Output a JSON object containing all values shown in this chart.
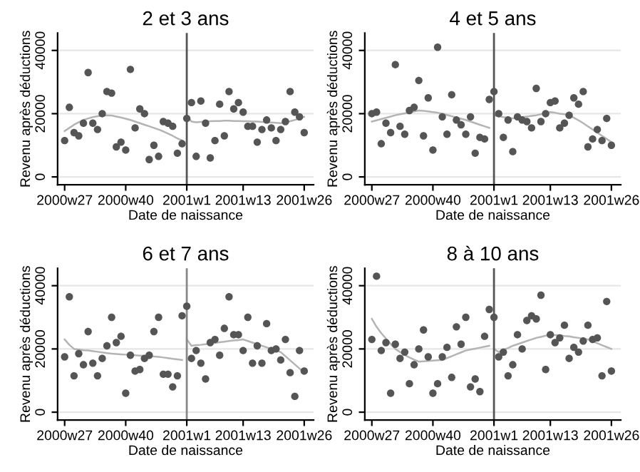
{
  "chart_data": [
    {
      "type": "scatter",
      "title": "2 et 3 ans",
      "xlabel": "Date de naissance",
      "ylabel": "Revenu après déductions",
      "ylim": [
        -2500,
        45500
      ],
      "yticks": [
        0,
        20000,
        40000
      ],
      "grid": "y",
      "marker": "circle",
      "categories": [
        "2000w27",
        null,
        null,
        null,
        null,
        null,
        null,
        null,
        null,
        null,
        null,
        null,
        null,
        "2000w40",
        null,
        null,
        null,
        null,
        null,
        null,
        null,
        null,
        null,
        null,
        null,
        null,
        "2001w1",
        null,
        null,
        null,
        null,
        null,
        null,
        null,
        null,
        null,
        null,
        null,
        "2001w13",
        null,
        null,
        null,
        null,
        null,
        null,
        null,
        null,
        null,
        null,
        null,
        null,
        "2001w26"
      ],
      "ref_lines": [
        {
          "axis": "x",
          "value": "2001w1",
          "color": "#555555"
        }
      ],
      "series": [
        {
          "color": "#555555",
          "values": [
            11500,
            22000,
            14000,
            13000,
            17000,
            33000,
            17000,
            15000,
            20000,
            27000,
            26500,
            9500,
            11000,
            8500,
            34000,
            15500,
            21500,
            20000,
            5500,
            10000,
            6500,
            17500,
            17000,
            16000,
            7500,
            10500,
            18500,
            23500,
            6500,
            24000,
            17000,
            6000,
            11500,
            23000,
            13000,
            27000,
            21500,
            23500,
            20500,
            16000,
            16000,
            11000,
            15000,
            18000,
            15500,
            11500,
            15000,
            17500,
            27000,
            20500,
            19000,
            14000
          ]
        },
        {
          "type": "line",
          "color": "#b4b4b4",
          "marker": "none",
          "values": [
            14500,
            15500,
            16500,
            17300,
            18000,
            18500,
            18900,
            19200,
            19400,
            19500,
            19400,
            19100,
            18800,
            18400,
            18000,
            17500,
            17000,
            16500,
            16000,
            15500,
            15000,
            14400,
            13700,
            13000,
            12200,
            11500,
            null,
            null,
            null,
            null,
            null,
            null,
            null,
            null,
            null,
            null,
            null,
            null,
            null,
            null,
            null,
            null,
            null,
            null,
            null,
            null,
            null,
            null,
            null,
            null,
            null,
            null
          ]
        },
        {
          "type": "line",
          "color": "#b4b4b4",
          "marker": "none",
          "values": [
            null,
            null,
            null,
            null,
            null,
            null,
            null,
            null,
            null,
            null,
            null,
            null,
            null,
            null,
            null,
            null,
            null,
            null,
            null,
            null,
            null,
            null,
            null,
            null,
            null,
            null,
            19500,
            17500,
            17300,
            17400,
            17500,
            17600,
            17700,
            17700,
            17800,
            17800,
            17700,
            17700,
            17600,
            17600,
            17500,
            17500,
            17400,
            17300,
            17200,
            17100,
            17000,
            17200,
            17600,
            18000,
            18500,
            19000
          ]
        }
      ]
    },
    {
      "type": "scatter",
      "title": "4 et 5 ans",
      "xlabel": "Date de naissance",
      "ylabel": "Revenu après déductions",
      "ylim": [
        -2500,
        45500
      ],
      "yticks": [
        0,
        20000,
        40000
      ],
      "grid": "y",
      "marker": "circle",
      "categories": [
        "2000w27",
        null,
        null,
        null,
        null,
        null,
        null,
        null,
        null,
        null,
        null,
        null,
        null,
        "2000w40",
        null,
        null,
        null,
        null,
        null,
        null,
        null,
        null,
        null,
        null,
        null,
        null,
        "2001w1",
        null,
        null,
        null,
        null,
        null,
        null,
        null,
        null,
        null,
        null,
        null,
        "2001w13",
        null,
        null,
        null,
        null,
        null,
        null,
        null,
        null,
        null,
        null,
        null,
        null,
        "2001w26"
      ],
      "ref_lines": [
        {
          "axis": "x",
          "value": "2001w1",
          "color": "#555555"
        }
      ],
      "series": [
        {
          "color": "#555555",
          "values": [
            20000,
            20500,
            10500,
            17000,
            14000,
            35500,
            16000,
            13500,
            21000,
            22000,
            30500,
            13000,
            25000,
            8500,
            41000,
            19000,
            13500,
            26000,
            18000,
            16500,
            13500,
            19000,
            7500,
            12500,
            12000,
            24500,
            27000,
            20000,
            12500,
            18000,
            8000,
            19000,
            18000,
            17500,
            15500,
            28000,
            17500,
            20000,
            23500,
            24000,
            15500,
            17000,
            19500,
            25000,
            23000,
            27000,
            9500,
            12000,
            15000,
            11500,
            18500,
            10000
          ]
        },
        {
          "type": "line",
          "color": "#b4b4b4",
          "marker": "none",
          "values": [
            17500,
            17900,
            18300,
            18700,
            19100,
            19500,
            19800,
            20100,
            20400,
            20700,
            21000,
            20900,
            20700,
            20500,
            20300,
            20000,
            19600,
            19200,
            18800,
            18400,
            18000,
            17500,
            17000,
            16500,
            16000,
            15500,
            null,
            null,
            null,
            null,
            null,
            null,
            null,
            null,
            null,
            null,
            null,
            null,
            null,
            null,
            null,
            null,
            null,
            null,
            null,
            null,
            null,
            null,
            null,
            null,
            null,
            null
          ]
        },
        {
          "type": "line",
          "color": "#b4b4b4",
          "marker": "none",
          "values": [
            null,
            null,
            null,
            null,
            null,
            null,
            null,
            null,
            null,
            null,
            null,
            null,
            null,
            null,
            null,
            null,
            null,
            null,
            null,
            null,
            null,
            null,
            null,
            null,
            null,
            null,
            19500,
            19200,
            18900,
            18700,
            18500,
            18700,
            18900,
            19100,
            19300,
            19500,
            19800,
            20200,
            20500,
            20300,
            20000,
            19800,
            19500,
            18700,
            17900,
            17000,
            16000,
            15000,
            14000,
            13000,
            12000,
            11000
          ]
        }
      ]
    },
    {
      "type": "scatter",
      "title": "6 et 7 ans",
      "xlabel": "Date de naissance",
      "ylabel": "Revenu après déductions",
      "ylim": [
        -2500,
        45500
      ],
      "yticks": [
        0,
        20000,
        40000
      ],
      "grid": "y",
      "marker": "circle",
      "categories": [
        "2000w27",
        null,
        null,
        null,
        null,
        null,
        null,
        null,
        null,
        null,
        null,
        null,
        null,
        "2000w40",
        null,
        null,
        null,
        null,
        null,
        null,
        null,
        null,
        null,
        null,
        null,
        null,
        "2001w1",
        null,
        null,
        null,
        null,
        null,
        null,
        null,
        null,
        null,
        null,
        null,
        "2001w13",
        null,
        null,
        null,
        null,
        null,
        null,
        null,
        null,
        null,
        null,
        null,
        null,
        "2001w26"
      ],
      "ref_lines": [
        {
          "axis": "x",
          "value": "2001w1",
          "color": "#888888"
        }
      ],
      "series": [
        {
          "color": "#555555",
          "values": [
            17500,
            36500,
            11500,
            18500,
            15000,
            25500,
            15500,
            11500,
            17000,
            21000,
            30000,
            22000,
            24000,
            6000,
            18000,
            13000,
            13500,
            17000,
            18000,
            25500,
            30000,
            12000,
            12000,
            8000,
            11500,
            30500,
            33500,
            17000,
            19500,
            15500,
            10500,
            22000,
            23000,
            18000,
            26500,
            36500,
            24500,
            24500,
            19500,
            30000,
            15500,
            21000,
            15500,
            28000,
            19500,
            20000,
            16500,
            23000,
            12500,
            5000,
            19500,
            13000
          ]
        },
        {
          "type": "line",
          "color": "#b4b4b4",
          "marker": "none",
          "values": [
            23000,
            21300,
            20000,
            19800,
            19600,
            19500,
            19300,
            19100,
            18900,
            18700,
            18500,
            18400,
            18300,
            18200,
            18100,
            18000,
            17900,
            17800,
            17700,
            17600,
            17500,
            17300,
            17100,
            16900,
            16700,
            16500,
            null,
            null,
            null,
            null,
            null,
            null,
            null,
            null,
            null,
            null,
            null,
            null,
            null,
            null,
            null,
            null,
            null,
            null,
            null,
            null,
            null,
            null,
            null,
            null,
            null,
            null
          ]
        },
        {
          "type": "line",
          "color": "#b4b4b4",
          "marker": "none",
          "values": [
            null,
            null,
            null,
            null,
            null,
            null,
            null,
            null,
            null,
            null,
            null,
            null,
            null,
            null,
            null,
            null,
            null,
            null,
            null,
            null,
            null,
            null,
            null,
            null,
            null,
            null,
            23000,
            21000,
            21200,
            21300,
            21500,
            21700,
            21900,
            22100,
            22300,
            22500,
            22700,
            22800,
            23000,
            22500,
            22000,
            21500,
            21000,
            20500,
            20000,
            19500,
            19000,
            17700,
            16400,
            15100,
            13800,
            12500
          ]
        }
      ]
    },
    {
      "type": "scatter",
      "title": "8 à 10 ans",
      "xlabel": "Date de naissance",
      "ylabel": "Revenu après déductions",
      "ylim": [
        -2500,
        45500
      ],
      "yticks": [
        0,
        20000,
        40000
      ],
      "grid": "y",
      "marker": "circle",
      "categories": [
        "2000w27",
        null,
        null,
        null,
        null,
        null,
        null,
        null,
        null,
        null,
        null,
        null,
        null,
        "2000w40",
        null,
        null,
        null,
        null,
        null,
        null,
        null,
        null,
        null,
        null,
        null,
        null,
        "2001w1",
        null,
        null,
        null,
        null,
        null,
        null,
        null,
        null,
        null,
        null,
        null,
        "2001w13",
        null,
        null,
        null,
        null,
        null,
        null,
        null,
        null,
        null,
        null,
        null,
        null,
        "2001w26"
      ],
      "ref_lines": [
        {
          "axis": "x",
          "value": "2001w1",
          "color": "#555555"
        }
      ],
      "series": [
        {
          "color": "#555555",
          "values": [
            23000,
            43000,
            19500,
            22000,
            6000,
            21500,
            17000,
            19000,
            9000,
            15000,
            20000,
            26000,
            17500,
            6000,
            9000,
            17500,
            20500,
            11000,
            27000,
            21500,
            30000,
            8000,
            10500,
            6500,
            24000,
            32500,
            30000,
            17500,
            19000,
            11500,
            15000,
            24500,
            20000,
            29000,
            30500,
            29500,
            37000,
            13500,
            24500,
            22000,
            23500,
            27500,
            17000,
            20500,
            19000,
            22500,
            27500,
            23000,
            23500,
            11500,
            35000,
            13000
          ]
        },
        {
          "type": "line",
          "color": "#b4b4b4",
          "marker": "none",
          "values": [
            29500,
            27000,
            25000,
            23300,
            21600,
            20000,
            19000,
            18100,
            17300,
            16600,
            16000,
            16100,
            16200,
            16300,
            16400,
            16500,
            17100,
            17700,
            18300,
            18900,
            19500,
            19800,
            20100,
            20400,
            20700,
            21000,
            null,
            null,
            null,
            null,
            null,
            null,
            null,
            null,
            null,
            null,
            null,
            null,
            null,
            null,
            null,
            null,
            null,
            null,
            null,
            null,
            null,
            null,
            null,
            null,
            null,
            null
          ]
        },
        {
          "type": "line",
          "color": "#b4b4b4",
          "marker": "none",
          "values": [
            null,
            null,
            null,
            null,
            null,
            null,
            null,
            null,
            null,
            null,
            null,
            null,
            null,
            null,
            null,
            null,
            null,
            null,
            null,
            null,
            null,
            null,
            null,
            null,
            null,
            null,
            20000,
            19000,
            19700,
            20300,
            21000,
            21500,
            22000,
            22500,
            23000,
            23500,
            23800,
            24200,
            24500,
            24400,
            24300,
            24100,
            24000,
            23700,
            23500,
            23200,
            23000,
            22400,
            21800,
            21200,
            20600,
            20000
          ]
        }
      ]
    }
  ]
}
